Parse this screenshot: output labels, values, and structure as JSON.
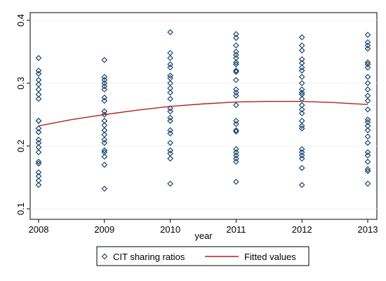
{
  "chart_data": {
    "type": "scatter",
    "title": "",
    "xlabel": "year",
    "ylabel": "",
    "xlim": [
      2008,
      2013
    ],
    "ylim": [
      0.1,
      0.4
    ],
    "x_ticks": [
      2008,
      2009,
      2010,
      2011,
      2012,
      2013
    ],
    "y_ticks": [
      0.1,
      0.2,
      0.3,
      0.4
    ],
    "grid": true,
    "legend_position": "bottom",
    "series": [
      {
        "name": "CIT sharing ratios",
        "marker": "hollow-diamond",
        "color": "#1a476f",
        "points": [
          {
            "x": 2008,
            "y": 0.34
          },
          {
            "x": 2008,
            "y": 0.32
          },
          {
            "x": 2008,
            "y": 0.315
          },
          {
            "x": 2008,
            "y": 0.305
          },
          {
            "x": 2008,
            "y": 0.298
          },
          {
            "x": 2008,
            "y": 0.29
          },
          {
            "x": 2008,
            "y": 0.282
          },
          {
            "x": 2008,
            "y": 0.275
          },
          {
            "x": 2008,
            "y": 0.24
          },
          {
            "x": 2008,
            "y": 0.24
          },
          {
            "x": 2008,
            "y": 0.228
          },
          {
            "x": 2008,
            "y": 0.222
          },
          {
            "x": 2008,
            "y": 0.21
          },
          {
            "x": 2008,
            "y": 0.205
          },
          {
            "x": 2008,
            "y": 0.198
          },
          {
            "x": 2008,
            "y": 0.19
          },
          {
            "x": 2008,
            "y": 0.175
          },
          {
            "x": 2008,
            "y": 0.172
          },
          {
            "x": 2008,
            "y": 0.158
          },
          {
            "x": 2008,
            "y": 0.152
          },
          {
            "x": 2008,
            "y": 0.145
          },
          {
            "x": 2008,
            "y": 0.138
          },
          {
            "x": 2009,
            "y": 0.337
          },
          {
            "x": 2009,
            "y": 0.31
          },
          {
            "x": 2009,
            "y": 0.305
          },
          {
            "x": 2009,
            "y": 0.3
          },
          {
            "x": 2009,
            "y": 0.295
          },
          {
            "x": 2009,
            "y": 0.29
          },
          {
            "x": 2009,
            "y": 0.277
          },
          {
            "x": 2009,
            "y": 0.272
          },
          {
            "x": 2009,
            "y": 0.255
          },
          {
            "x": 2009,
            "y": 0.25
          },
          {
            "x": 2009,
            "y": 0.24
          },
          {
            "x": 2009,
            "y": 0.233
          },
          {
            "x": 2009,
            "y": 0.225
          },
          {
            "x": 2009,
            "y": 0.218
          },
          {
            "x": 2009,
            "y": 0.21
          },
          {
            "x": 2009,
            "y": 0.205
          },
          {
            "x": 2009,
            "y": 0.193
          },
          {
            "x": 2009,
            "y": 0.19
          },
          {
            "x": 2009,
            "y": 0.183
          },
          {
            "x": 2009,
            "y": 0.17
          },
          {
            "x": 2009,
            "y": 0.132
          },
          {
            "x": 2010,
            "y": 0.381
          },
          {
            "x": 2010,
            "y": 0.348
          },
          {
            "x": 2010,
            "y": 0.34
          },
          {
            "x": 2010,
            "y": 0.33
          },
          {
            "x": 2010,
            "y": 0.325
          },
          {
            "x": 2010,
            "y": 0.312
          },
          {
            "x": 2010,
            "y": 0.308
          },
          {
            "x": 2010,
            "y": 0.3
          },
          {
            "x": 2010,
            "y": 0.292
          },
          {
            "x": 2010,
            "y": 0.285
          },
          {
            "x": 2010,
            "y": 0.275
          },
          {
            "x": 2010,
            "y": 0.26
          },
          {
            "x": 2010,
            "y": 0.255
          },
          {
            "x": 2010,
            "y": 0.245
          },
          {
            "x": 2010,
            "y": 0.24
          },
          {
            "x": 2010,
            "y": 0.225
          },
          {
            "x": 2010,
            "y": 0.22
          },
          {
            "x": 2010,
            "y": 0.205
          },
          {
            "x": 2010,
            "y": 0.193
          },
          {
            "x": 2010,
            "y": 0.188
          },
          {
            "x": 2010,
            "y": 0.18
          },
          {
            "x": 2010,
            "y": 0.14
          },
          {
            "x": 2011,
            "y": 0.378
          },
          {
            "x": 2011,
            "y": 0.372
          },
          {
            "x": 2011,
            "y": 0.36
          },
          {
            "x": 2011,
            "y": 0.35
          },
          {
            "x": 2011,
            "y": 0.345
          },
          {
            "x": 2011,
            "y": 0.34
          },
          {
            "x": 2011,
            "y": 0.333
          },
          {
            "x": 2011,
            "y": 0.33
          },
          {
            "x": 2011,
            "y": 0.32
          },
          {
            "x": 2011,
            "y": 0.318
          },
          {
            "x": 2011,
            "y": 0.305
          },
          {
            "x": 2011,
            "y": 0.29
          },
          {
            "x": 2011,
            "y": 0.285
          },
          {
            "x": 2011,
            "y": 0.28
          },
          {
            "x": 2011,
            "y": 0.265
          },
          {
            "x": 2011,
            "y": 0.24
          },
          {
            "x": 2011,
            "y": 0.235
          },
          {
            "x": 2011,
            "y": 0.225
          },
          {
            "x": 2011,
            "y": 0.223
          },
          {
            "x": 2011,
            "y": 0.195
          },
          {
            "x": 2011,
            "y": 0.19
          },
          {
            "x": 2011,
            "y": 0.185
          },
          {
            "x": 2011,
            "y": 0.18
          },
          {
            "x": 2011,
            "y": 0.175
          },
          {
            "x": 2011,
            "y": 0.143
          },
          {
            "x": 2012,
            "y": 0.373
          },
          {
            "x": 2012,
            "y": 0.36
          },
          {
            "x": 2012,
            "y": 0.352
          },
          {
            "x": 2012,
            "y": 0.338
          },
          {
            "x": 2012,
            "y": 0.332
          },
          {
            "x": 2012,
            "y": 0.325
          },
          {
            "x": 2012,
            "y": 0.32
          },
          {
            "x": 2012,
            "y": 0.31
          },
          {
            "x": 2012,
            "y": 0.3
          },
          {
            "x": 2012,
            "y": 0.29
          },
          {
            "x": 2012,
            "y": 0.285
          },
          {
            "x": 2012,
            "y": 0.282
          },
          {
            "x": 2012,
            "y": 0.275
          },
          {
            "x": 2012,
            "y": 0.265
          },
          {
            "x": 2012,
            "y": 0.258
          },
          {
            "x": 2012,
            "y": 0.252
          },
          {
            "x": 2012,
            "y": 0.24
          },
          {
            "x": 2012,
            "y": 0.232
          },
          {
            "x": 2012,
            "y": 0.228
          },
          {
            "x": 2012,
            "y": 0.195
          },
          {
            "x": 2012,
            "y": 0.19
          },
          {
            "x": 2012,
            "y": 0.185
          },
          {
            "x": 2012,
            "y": 0.18
          },
          {
            "x": 2012,
            "y": 0.165
          },
          {
            "x": 2012,
            "y": 0.138
          },
          {
            "x": 2013,
            "y": 0.377
          },
          {
            "x": 2013,
            "y": 0.365
          },
          {
            "x": 2013,
            "y": 0.36
          },
          {
            "x": 2013,
            "y": 0.355
          },
          {
            "x": 2013,
            "y": 0.333
          },
          {
            "x": 2013,
            "y": 0.33
          },
          {
            "x": 2013,
            "y": 0.325
          },
          {
            "x": 2013,
            "y": 0.31
          },
          {
            "x": 2013,
            "y": 0.3
          },
          {
            "x": 2013,
            "y": 0.29
          },
          {
            "x": 2013,
            "y": 0.28
          },
          {
            "x": 2013,
            "y": 0.272
          },
          {
            "x": 2013,
            "y": 0.258
          },
          {
            "x": 2013,
            "y": 0.242
          },
          {
            "x": 2013,
            "y": 0.238
          },
          {
            "x": 2013,
            "y": 0.232
          },
          {
            "x": 2013,
            "y": 0.225
          },
          {
            "x": 2013,
            "y": 0.215
          },
          {
            "x": 2013,
            "y": 0.205
          },
          {
            "x": 2013,
            "y": 0.19
          },
          {
            "x": 2013,
            "y": 0.185
          },
          {
            "x": 2013,
            "y": 0.175
          },
          {
            "x": 2013,
            "y": 0.163
          },
          {
            "x": 2013,
            "y": 0.16
          },
          {
            "x": 2013,
            "y": 0.14
          }
        ]
      },
      {
        "name": "Fitted values",
        "type": "line",
        "color": "#b22222",
        "x": [
          2008,
          2008.5,
          2009,
          2009.5,
          2010,
          2010.5,
          2011,
          2011.5,
          2012,
          2012.5,
          2013
        ],
        "y": [
          0.232,
          0.242,
          0.25,
          0.257,
          0.263,
          0.267,
          0.27,
          0.271,
          0.271,
          0.269,
          0.266
        ]
      }
    ]
  }
}
